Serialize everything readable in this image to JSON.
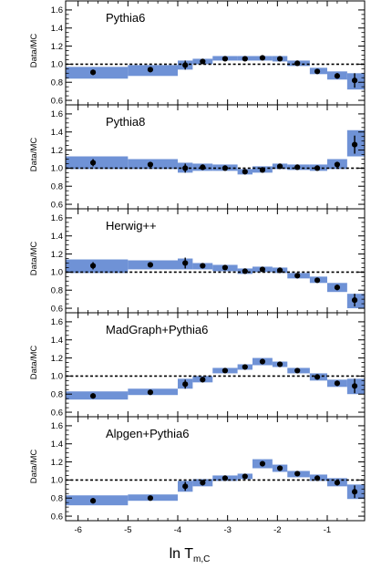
{
  "chart_data": {
    "type": "scatter",
    "xlabel_main": "ln T",
    "xlabel_sub": "m,C",
    "ylabel": "Data/MC",
    "xlim": [
      -6.25,
      -0.25
    ],
    "ylim": [
      0.55,
      1.7
    ],
    "x_ticks": [
      "-6",
      "-5",
      "-4",
      "-3",
      "-2",
      "-1"
    ],
    "x_tick_values": [
      -6,
      -5,
      -4,
      -3,
      -2,
      -1
    ],
    "y_ticks": [
      "0.6",
      "0.8",
      "1.0",
      "1.2",
      "1.4",
      "1.6"
    ],
    "y_tick_values": [
      0.6,
      0.8,
      1.0,
      1.2,
      1.4,
      1.6
    ],
    "reference_line": 1.0,
    "band_color": "#6f92d6",
    "bins": [
      [
        -6.25,
        -5.0
      ],
      [
        -5.0,
        -4.0
      ],
      [
        -4.0,
        -3.7
      ],
      [
        -3.7,
        -3.3
      ],
      [
        -3.3,
        -2.8
      ],
      [
        -2.8,
        -2.5
      ],
      [
        -2.5,
        -2.1
      ],
      [
        -2.1,
        -1.8
      ],
      [
        -1.8,
        -1.35
      ],
      [
        -1.35,
        -1.0
      ],
      [
        -1.0,
        -0.6
      ],
      [
        -0.6,
        -0.25
      ]
    ],
    "x_points": [
      -5.7,
      -4.55,
      -3.85,
      -3.5,
      -3.05,
      -2.65,
      -2.3,
      -1.95,
      -1.6,
      -1.2,
      -0.8,
      -0.45
    ],
    "panels": [
      {
        "name": "Pythia6",
        "y": [
          0.91,
          0.94,
          0.99,
          1.03,
          1.06,
          1.06,
          1.07,
          1.06,
          1.01,
          0.92,
          0.87,
          0.82
        ],
        "yerr": [
          0.03,
          0.02,
          0.05,
          0.03,
          0.02,
          0.02,
          0.02,
          0.02,
          0.02,
          0.02,
          0.03,
          0.08
        ],
        "band_lo": [
          0.84,
          0.87,
          0.94,
          1.0,
          1.04,
          1.04,
          1.04,
          1.03,
          0.98,
          0.89,
          0.83,
          0.72
        ],
        "band_hi": [
          0.97,
          0.99,
          1.04,
          1.06,
          1.09,
          1.09,
          1.09,
          1.09,
          1.04,
          0.96,
          0.92,
          0.9
        ]
      },
      {
        "name": "Pythia8",
        "y": [
          1.06,
          1.04,
          1.0,
          1.01,
          1.0,
          0.96,
          0.98,
          1.02,
          1.01,
          1.0,
          1.04,
          1.26
        ],
        "yerr": [
          0.04,
          0.02,
          0.05,
          0.03,
          0.02,
          0.02,
          0.02,
          0.02,
          0.02,
          0.02,
          0.03,
          0.1
        ],
        "band_lo": [
          0.99,
          0.99,
          0.95,
          0.97,
          0.97,
          0.93,
          0.95,
          0.99,
          0.98,
          0.97,
          0.99,
          1.13
        ],
        "band_hi": [
          1.13,
          1.1,
          1.06,
          1.05,
          1.04,
          0.99,
          1.02,
          1.05,
          1.04,
          1.04,
          1.1,
          1.42
        ]
      },
      {
        "name": "Herwig++",
        "y": [
          1.07,
          1.08,
          1.1,
          1.07,
          1.05,
          1.01,
          1.03,
          1.02,
          0.96,
          0.91,
          0.83,
          0.69
        ],
        "yerr": [
          0.04,
          0.03,
          0.06,
          0.03,
          0.02,
          0.02,
          0.02,
          0.02,
          0.02,
          0.02,
          0.03,
          0.07
        ],
        "band_lo": [
          0.99,
          1.03,
          1.03,
          1.03,
          1.01,
          0.98,
          1.0,
          0.99,
          0.93,
          0.88,
          0.78,
          0.6
        ],
        "band_hi": [
          1.14,
          1.13,
          1.15,
          1.1,
          1.08,
          1.04,
          1.06,
          1.05,
          0.99,
          0.95,
          0.88,
          0.76
        ]
      },
      {
        "name": "MadGraph+Pythia6",
        "y": [
          0.78,
          0.82,
          0.91,
          0.96,
          1.06,
          1.1,
          1.16,
          1.13,
          1.06,
          0.99,
          0.92,
          0.89
        ],
        "yerr": [
          0.03,
          0.02,
          0.05,
          0.03,
          0.02,
          0.02,
          0.02,
          0.02,
          0.02,
          0.02,
          0.03,
          0.08
        ],
        "band_lo": [
          0.74,
          0.79,
          0.86,
          0.93,
          1.03,
          1.07,
          1.12,
          1.1,
          1.03,
          0.95,
          0.88,
          0.8
        ],
        "band_hi": [
          0.83,
          0.86,
          0.97,
          1.0,
          1.09,
          1.13,
          1.2,
          1.16,
          1.09,
          1.03,
          0.96,
          0.97
        ]
      },
      {
        "name": "Alpgen+Pythia6",
        "y": [
          0.77,
          0.8,
          0.93,
          0.97,
          1.02,
          1.04,
          1.18,
          1.13,
          1.07,
          1.02,
          0.97,
          0.87
        ],
        "yerr": [
          0.03,
          0.02,
          0.05,
          0.03,
          0.02,
          0.02,
          0.02,
          0.02,
          0.02,
          0.02,
          0.03,
          0.07
        ],
        "band_lo": [
          0.72,
          0.77,
          0.87,
          0.93,
          0.99,
          1.01,
          1.13,
          1.09,
          1.03,
          0.99,
          0.93,
          0.79
        ],
        "band_hi": [
          0.83,
          0.84,
          0.99,
          1.01,
          1.05,
          1.07,
          1.23,
          1.17,
          1.1,
          1.06,
          1.02,
          0.95
        ]
      }
    ]
  }
}
